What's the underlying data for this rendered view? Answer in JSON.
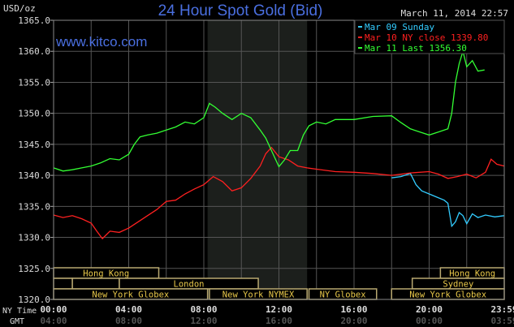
{
  "chart_data": {
    "type": "line",
    "title": "24 Hour Spot Gold (Bid)",
    "ylabel": "USD/oz",
    "timestamp": "March 11, 2014 22:57",
    "watermark": "www.kitco.com",
    "ylim": [
      1320,
      1365
    ],
    "xlim": [
      0,
      24
    ],
    "yticks": [
      "1320.0",
      "1325.0",
      "1330.0",
      "1335.0",
      "1340.0",
      "1345.0",
      "1350.0",
      "1355.0",
      "1360.0",
      "1365.0"
    ],
    "xaxis_ny_label": "NY Time",
    "xaxis_gmt_label": "GMT",
    "xticks": [
      {
        "h": 0,
        "ny": "00:00",
        "gmt": "04:00"
      },
      {
        "h": 4,
        "ny": "04:00",
        "gmt": "08:00"
      },
      {
        "h": 8,
        "ny": "08:00",
        "gmt": "12:00"
      },
      {
        "h": 12,
        "ny": "12:00",
        "gmt": "16:00"
      },
      {
        "h": 16,
        "ny": "16:00",
        "gmt": "20:00"
      },
      {
        "h": 20,
        "ny": "20:00",
        "gmt": "00:00"
      },
      {
        "h": 24,
        "ny": "23:59",
        "gmt": "03:59"
      }
    ],
    "grid": true,
    "shaded_hours": [
      8.2,
      13.5
    ],
    "legend": {
      "placement": "top-right",
      "entries": [
        {
          "label": "Mar 09 Sunday",
          "color": "#33ccff"
        },
        {
          "label": "Mar 10 NY close 1339.80",
          "color": "#ff2020"
        },
        {
          "label": "Mar 11 Last 1356.30",
          "color": "#33ff33"
        }
      ]
    },
    "series": [
      {
        "name": "Mar 09 Sunday",
        "color": "#33ccff",
        "x": [
          18,
          18.5,
          19,
          19.3,
          19.6,
          20,
          20.4,
          20.8,
          21,
          21.2,
          21.4,
          21.6,
          21.8,
          22,
          22.3,
          22.6,
          23,
          23.5,
          23.99
        ],
        "y": [
          1339.6,
          1339.8,
          1340.3,
          1338.5,
          1337.5,
          1337,
          1336.5,
          1336,
          1335.5,
          1331.8,
          1332.5,
          1334,
          1333.5,
          1332.2,
          1333.8,
          1333.2,
          1333.6,
          1333.3,
          1333.5
        ]
      },
      {
        "name": "Mar 10 NY close",
        "color": "#ff2020",
        "x": [
          0,
          0.5,
          1,
          1.5,
          2,
          2.3,
          2.6,
          3,
          3.5,
          4,
          4.5,
          5,
          5.5,
          6,
          6.5,
          7,
          7.5,
          8,
          8.5,
          9,
          9.5,
          10,
          10.5,
          11,
          11.3,
          11.6,
          12,
          12.5,
          13,
          13.5,
          14,
          15,
          16,
          17,
          18,
          19,
          20,
          20.5,
          21,
          21.5,
          22,
          22.5,
          23,
          23.3,
          23.6,
          23.99
        ],
        "y": [
          1333.6,
          1333.2,
          1333.5,
          1333,
          1332.3,
          1331,
          1329.8,
          1331,
          1330.8,
          1331.5,
          1332.5,
          1333.5,
          1334.5,
          1335.8,
          1336,
          1337,
          1337.8,
          1338.5,
          1339.8,
          1339,
          1337.5,
          1338,
          1339.5,
          1341.5,
          1343.5,
          1344.5,
          1343,
          1342.5,
          1341.5,
          1341.2,
          1341,
          1340.6,
          1340.5,
          1340.3,
          1340,
          1340.4,
          1340.6,
          1340.2,
          1339.5,
          1339.8,
          1340.2,
          1339.6,
          1340.5,
          1342.6,
          1341.8,
          1341.5
        ]
      },
      {
        "name": "Mar 11 Last",
        "color": "#33ff33",
        "x": [
          0,
          0.5,
          1,
          1.5,
          2,
          2.5,
          3,
          3.5,
          4,
          4.3,
          4.6,
          5,
          5.5,
          6,
          6.5,
          7,
          7.5,
          8,
          8.3,
          8.6,
          9,
          9.5,
          10,
          10.5,
          11,
          11.3,
          11.6,
          12,
          12.3,
          12.6,
          13,
          13.3,
          13.6,
          14,
          14.5,
          15,
          16,
          17,
          18,
          18.5,
          19,
          19.5,
          20,
          20.5,
          21,
          21.2,
          21.4,
          21.6,
          21.8,
          22,
          22.3,
          22.6,
          22.95
        ],
        "y": [
          1341.2,
          1340.7,
          1340.9,
          1341.2,
          1341.5,
          1342,
          1342.7,
          1342.5,
          1343.4,
          1345,
          1346.2,
          1346.5,
          1346.8,
          1347.3,
          1347.8,
          1348.6,
          1348.3,
          1349.3,
          1351.6,
          1351,
          1350,
          1349,
          1350,
          1349.3,
          1347.3,
          1346,
          1344,
          1341.4,
          1342.5,
          1344,
          1344,
          1346.5,
          1348,
          1348.6,
          1348.3,
          1349,
          1349,
          1349.5,
          1349.6,
          1348.5,
          1347.5,
          1347,
          1346.5,
          1347,
          1347.5,
          1350,
          1355,
          1358,
          1360,
          1357.5,
          1358.5,
          1356.8,
          1357
        ]
      }
    ],
    "sessions": [
      {
        "label": "Hong Kong",
        "row": 0,
        "start": 0,
        "end": 5.6
      },
      {
        "label": "",
        "row": 1,
        "start": 0,
        "end": 1
      },
      {
        "label": "",
        "row": 1,
        "start": 1,
        "end": 3.5
      },
      {
        "label": "London",
        "row": 1,
        "start": 3.5,
        "end": 10.9
      },
      {
        "label": "New York Globex",
        "row": 2,
        "start": 0,
        "end": 8.2
      },
      {
        "label": "New York NYMEX",
        "row": 2,
        "start": 8.3,
        "end": 13.5
      },
      {
        "label": "NY Globex",
        "row": 2,
        "start": 13.6,
        "end": 17.2
      },
      {
        "label": "Hong Kong",
        "row": 0,
        "start": 20.6,
        "end": 24
      },
      {
        "label": "Sydney",
        "row": 1,
        "start": 19.1,
        "end": 24
      },
      {
        "label": "New York Globex",
        "row": 2,
        "start": 18,
        "end": 24
      }
    ]
  }
}
